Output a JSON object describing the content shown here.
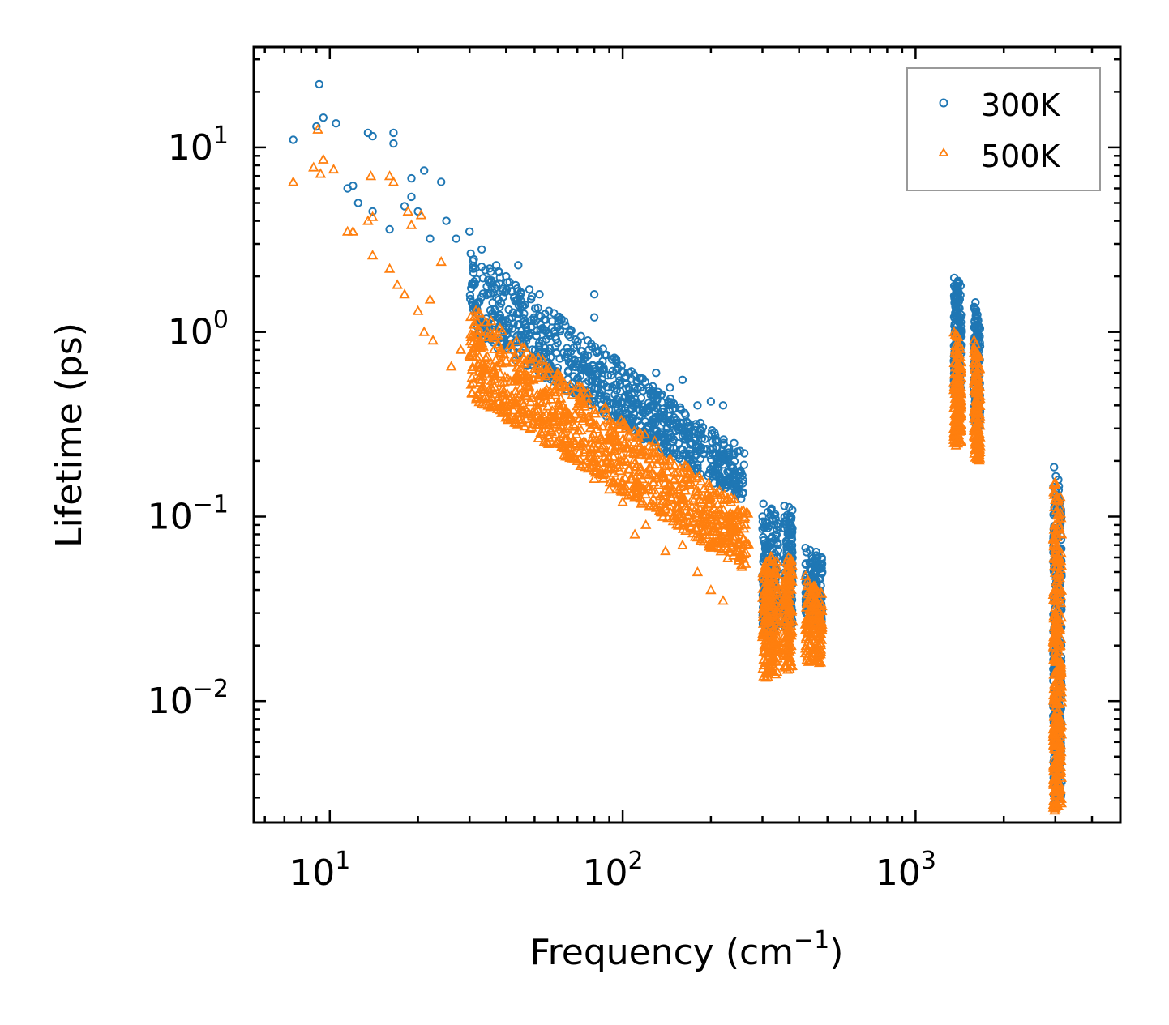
{
  "chart_data": {
    "type": "scatter",
    "title": "",
    "xlabel": "Frequency (cm",
    "xlabel_sup": "−1",
    "xlabel_suffix": ")",
    "ylabel": "Lifetime (ps)",
    "xscale": "log",
    "yscale": "log",
    "xlim": [
      5.5,
      5000
    ],
    "ylim": [
      0.0022,
      35
    ],
    "x_ticks": [
      {
        "base": "10",
        "exp": "1",
        "value": 10
      },
      {
        "base": "10",
        "exp": "2",
        "value": 100
      },
      {
        "base": "10",
        "exp": "3",
        "value": 1000
      }
    ],
    "y_ticks": [
      {
        "base": "10",
        "exp": "1",
        "value": 10
      },
      {
        "base": "10",
        "exp": "0",
        "value": 1
      },
      {
        "base": "10",
        "exp": "−1",
        "value": 0.1
      },
      {
        "base": "10",
        "exp": "−2",
        "value": 0.01
      }
    ],
    "legend_position": "top-right",
    "series": [
      {
        "name": "300K",
        "marker": "circle",
        "color": "#1f77b4",
        "points": [
          [
            7.5,
            11.0
          ],
          [
            9.0,
            13.0
          ],
          [
            9.2,
            22.0
          ],
          [
            9.5,
            14.5
          ],
          [
            10.5,
            13.5
          ],
          [
            11.5,
            6.0
          ],
          [
            12.0,
            6.2
          ],
          [
            12.5,
            5.0
          ],
          [
            13.5,
            12.0
          ],
          [
            14.0,
            11.5
          ],
          [
            14.0,
            4.5
          ],
          [
            16.5,
            12.0
          ],
          [
            16.5,
            10.5
          ],
          [
            16.0,
            3.6
          ],
          [
            18.0,
            4.8
          ],
          [
            19.0,
            5.4
          ],
          [
            19.0,
            6.8
          ],
          [
            20.0,
            4.5
          ],
          [
            21.0,
            7.5
          ],
          [
            22.0,
            3.2
          ],
          [
            24.0,
            6.5
          ],
          [
            25.0,
            4.0
          ],
          [
            27.0,
            3.2
          ],
          [
            30.0,
            3.5
          ],
          [
            33.0,
            2.8
          ],
          [
            37.0,
            2.3
          ],
          [
            40.0,
            2.0
          ],
          [
            44.0,
            2.3
          ],
          [
            48.0,
            1.7
          ],
          [
            52.0,
            1.6
          ],
          [
            56.0,
            1.3
          ],
          [
            60.0,
            1.2
          ],
          [
            66.0,
            1.0
          ],
          [
            72.0,
            0.95
          ],
          [
            80.0,
            1.6
          ],
          [
            80.0,
            1.2
          ],
          [
            88.0,
            0.75
          ],
          [
            95.0,
            0.7
          ],
          [
            105.0,
            0.6
          ],
          [
            115.0,
            0.5
          ],
          [
            130.0,
            0.6
          ],
          [
            145.0,
            0.5
          ],
          [
            160.0,
            0.55
          ],
          [
            180.0,
            0.4
          ],
          [
            200.0,
            0.42
          ],
          [
            220.0,
            0.4
          ],
          [
            240.0,
            0.25
          ],
          [
            260.0,
            0.22
          ]
        ],
        "clusters": [
          {
            "x_range": [
              30,
              260
            ],
            "y_top": [
              2.8,
              0.22
            ],
            "y_bottom": [
              1.0,
              0.12
            ],
            "density": 900
          },
          {
            "x_range": [
              300,
              340
            ],
            "y_top": [
              0.12,
              0.11
            ],
            "y_bottom": [
              0.022,
              0.025
            ],
            "density": 220
          },
          {
            "x_range": [
              355,
              380
            ],
            "y_top": [
              0.12,
              0.11
            ],
            "y_bottom": [
              0.024,
              0.026
            ],
            "density": 140
          },
          {
            "x_range": [
              420,
              480
            ],
            "y_top": [
              0.08,
              0.06
            ],
            "y_bottom": [
              0.028,
              0.026
            ],
            "density": 160
          },
          {
            "x_range": [
              1350,
              1430
            ],
            "y_top": [
              2.1,
              1.8
            ],
            "y_bottom": [
              0.45,
              0.45
            ],
            "density": 200
          },
          {
            "x_range": [
              1580,
              1660
            ],
            "y_top": [
              1.6,
              1.2
            ],
            "y_bottom": [
              0.32,
              0.3
            ],
            "density": 160
          },
          {
            "x_range": [
              2950,
              3150
            ],
            "y_top": [
              0.2,
              0.14
            ],
            "y_bottom": [
              0.0028,
              0.003
            ],
            "density": 360
          }
        ]
      },
      {
        "name": "500K",
        "marker": "triangle",
        "color": "#ff7f0e",
        "points": [
          [
            7.5,
            6.5
          ],
          [
            8.8,
            7.8
          ],
          [
            9.1,
            12.5
          ],
          [
            9.3,
            7.2
          ],
          [
            9.5,
            8.6
          ],
          [
            10.3,
            7.6
          ],
          [
            11.5,
            3.5
          ],
          [
            12.0,
            3.5
          ],
          [
            13.5,
            4.0
          ],
          [
            13.8,
            7.0
          ],
          [
            14.0,
            4.2
          ],
          [
            14.0,
            2.6
          ],
          [
            16.0,
            7.0
          ],
          [
            16.5,
            6.5
          ],
          [
            16.0,
            2.2
          ],
          [
            17.0,
            1.8
          ],
          [
            18.0,
            1.6
          ],
          [
            18.5,
            4.5
          ],
          [
            19.0,
            3.8
          ],
          [
            20.0,
            1.3
          ],
          [
            20.5,
            4.3
          ],
          [
            21.0,
            1.0
          ],
          [
            22.0,
            1.5
          ],
          [
            22.5,
            0.9
          ],
          [
            24.0,
            2.4
          ],
          [
            26.0,
            0.65
          ],
          [
            28.0,
            0.8
          ],
          [
            30.0,
            0.75
          ],
          [
            33.0,
            0.6
          ],
          [
            36.0,
            0.65
          ],
          [
            40.0,
            0.7
          ],
          [
            44.0,
            0.55
          ],
          [
            48.0,
            0.5
          ],
          [
            52.0,
            0.45
          ],
          [
            56.0,
            0.3
          ],
          [
            62.0,
            0.28
          ],
          [
            70.0,
            0.2
          ],
          [
            80.0,
            0.16
          ],
          [
            90.0,
            0.14
          ],
          [
            100.0,
            0.12
          ],
          [
            110.0,
            0.08
          ],
          [
            120.0,
            0.09
          ],
          [
            140.0,
            0.065
          ],
          [
            160.0,
            0.07
          ],
          [
            180.0,
            0.05
          ],
          [
            200.0,
            0.04
          ],
          [
            220.0,
            0.035
          ],
          [
            250.0,
            0.06
          ]
        ],
        "clusters": [
          {
            "x_range": [
              30,
              270
            ],
            "y_top": [
              1.4,
              0.11
            ],
            "y_bottom": [
              0.45,
              0.05
            ],
            "density": 1000
          },
          {
            "x_range": [
              300,
              340
            ],
            "y_top": [
              0.065,
              0.06
            ],
            "y_bottom": [
              0.013,
              0.014
            ],
            "density": 200
          },
          {
            "x_range": [
              355,
              380
            ],
            "y_top": [
              0.065,
              0.06
            ],
            "y_bottom": [
              0.014,
              0.015
            ],
            "density": 130
          },
          {
            "x_range": [
              420,
              480
            ],
            "y_top": [
              0.05,
              0.04
            ],
            "y_bottom": [
              0.016,
              0.016
            ],
            "density": 150
          },
          {
            "x_range": [
              1350,
              1430
            ],
            "y_top": [
              1.1,
              0.9
            ],
            "y_bottom": [
              0.24,
              0.25
            ],
            "density": 180
          },
          {
            "x_range": [
              1580,
              1660
            ],
            "y_top": [
              0.95,
              0.7
            ],
            "y_bottom": [
              0.2,
              0.2
            ],
            "density": 150
          },
          {
            "x_range": [
              2950,
              3150
            ],
            "y_top": [
              0.18,
              0.12
            ],
            "y_bottom": [
              0.0025,
              0.0028
            ],
            "density": 340
          }
        ]
      }
    ]
  }
}
